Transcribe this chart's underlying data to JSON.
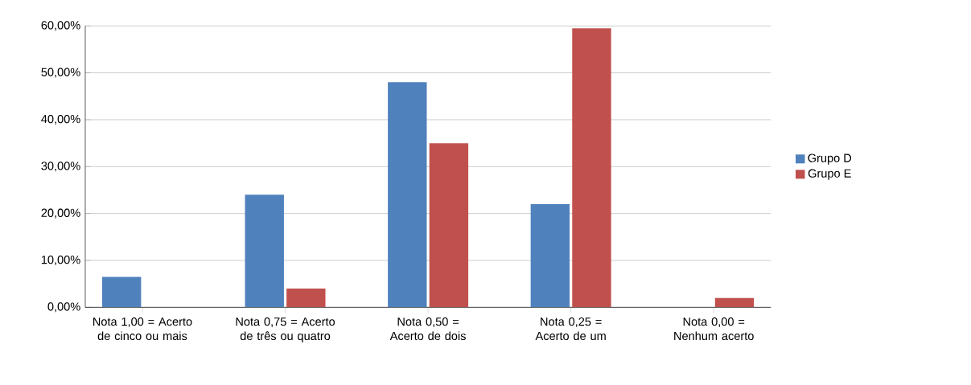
{
  "chart_data": {
    "type": "bar",
    "categories": [
      "Nota 1,00 = Acerto de cinco ou mais",
      "Nota 0,75 = Acerto de três ou quatro",
      "Nota 0,50 = Acerto de dois",
      "Nota 0,25 = Acerto de um",
      "Nota 0,00 = Nenhum acerto"
    ],
    "series": [
      {
        "name": "Grupo D",
        "color": "#4f81bd",
        "values": [
          6.5,
          24,
          48,
          22,
          0
        ]
      },
      {
        "name": "Grupo E",
        "color": "#c0504d",
        "values": [
          0,
          4,
          35,
          59.5,
          2
        ]
      }
    ],
    "ylim": [
      0,
      60
    ],
    "yticks": [
      {
        "value": 0,
        "label": "0,00%"
      },
      {
        "value": 10,
        "label": "10,00%"
      },
      {
        "value": 20,
        "label": "20,00%"
      },
      {
        "value": 30,
        "label": "30,00%"
      },
      {
        "value": 40,
        "label": "40,00%"
      },
      {
        "value": 50,
        "label": "50,00%"
      },
      {
        "value": 60,
        "label": "60,00%"
      }
    ],
    "grid": "y",
    "legend": "right"
  }
}
